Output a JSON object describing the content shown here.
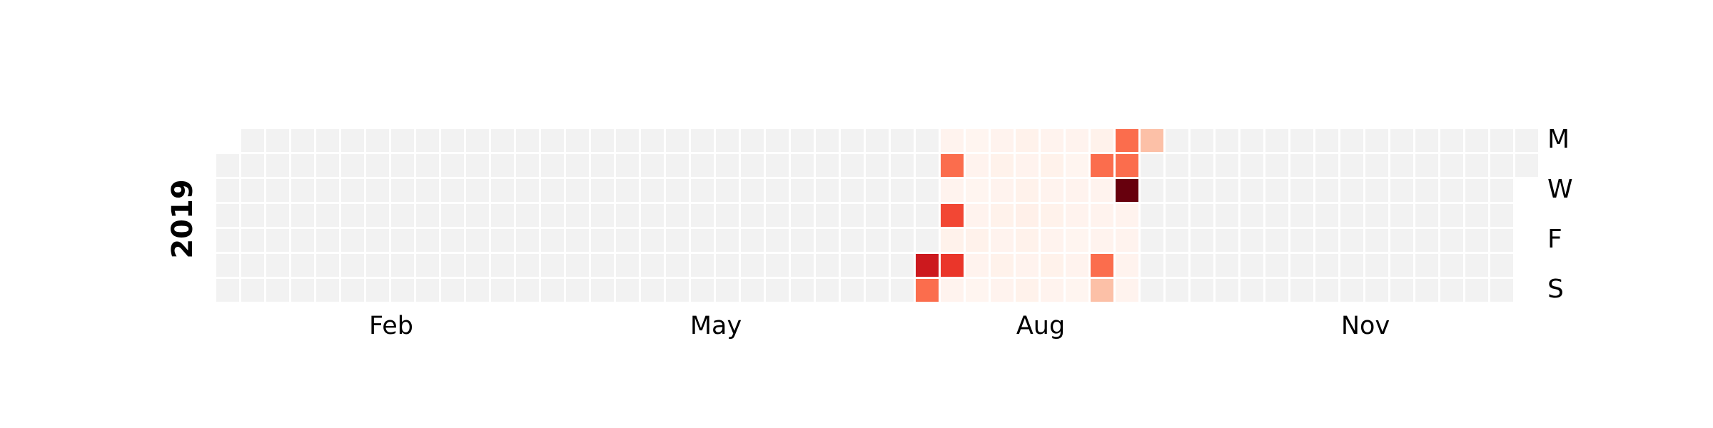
{
  "chart_data": {
    "type": "calendar",
    "year": 2019,
    "cmap": "Reds",
    "missing_color": "#f2f2f2",
    "day_labels": [
      "M",
      "W",
      "F",
      "S"
    ],
    "month_labels": [
      "Feb",
      "May",
      "Aug",
      "Nov"
    ],
    "values": [
      null,
      null,
      null,
      null,
      null,
      null,
      null,
      null,
      null,
      null,
      null,
      null,
      null,
      null,
      null,
      null,
      null,
      null,
      null,
      null,
      null,
      null,
      null,
      null,
      null,
      null,
      null,
      null,
      null,
      null,
      null,
      null,
      null,
      null,
      null,
      null,
      null,
      null,
      null,
      null,
      null,
      null,
      null,
      null,
      null,
      null,
      null,
      null,
      null,
      null,
      null,
      null,
      null,
      null,
      null,
      null,
      null,
      null,
      null,
      null,
      null,
      null,
      null,
      null,
      null,
      null,
      null,
      null,
      null,
      null,
      null,
      null,
      null,
      null,
      null,
      null,
      null,
      null,
      null,
      null,
      null,
      null,
      null,
      null,
      null,
      null,
      null,
      null,
      null,
      null,
      null,
      null,
      null,
      null,
      null,
      null,
      null,
      null,
      null,
      null,
      null,
      null,
      null,
      null,
      null,
      null,
      null,
      null,
      null,
      null,
      null,
      null,
      null,
      null,
      null,
      null,
      null,
      null,
      null,
      null,
      null,
      null,
      null,
      null,
      null,
      null,
      null,
      null,
      null,
      null,
      null,
      null,
      null,
      null,
      null,
      null,
      null,
      null,
      null,
      null,
      null,
      null,
      null,
      null,
      null,
      null,
      null,
      null,
      null,
      null,
      null,
      null,
      null,
      null,
      null,
      null,
      null,
      null,
      null,
      null,
      null,
      null,
      null,
      null,
      null,
      null,
      null,
      null,
      null,
      null,
      null,
      null,
      null,
      null,
      null,
      null,
      null,
      null,
      null,
      null,
      null,
      null,
      null,
      null,
      null,
      null,
      null,
      null,
      null,
      null,
      null,
      null,
      null,
      null,
      null,
      null,
      null,
      null,
      null,
      null,
      7.5,
      5,
      0.3,
      5,
      0.3,
      6,
      0.4,
      6.5,
      0.3,
      0.2,
      0.3,
      0.2,
      0.3,
      0.4,
      0.3,
      0.2,
      0.3,
      0.4,
      0.3,
      0.4,
      0.3,
      0.4,
      0.3,
      0.4,
      0.3,
      0.4,
      0.5,
      0.4,
      0.3,
      0.4,
      0.3,
      0.4,
      0.3,
      0.4,
      0.3,
      0.4,
      0.3,
      0.3,
      0.2,
      0.3,
      0.3,
      0.2,
      0.3,
      0.2,
      0.4,
      5,
      0.3,
      0.3,
      0.3,
      5,
      2.5,
      5,
      5,
      10,
      0.3,
      0.3,
      0.3,
      0.3,
      2.5,
      null,
      null,
      null,
      null,
      null,
      null,
      null,
      null,
      null,
      null,
      null,
      null,
      null,
      null,
      null,
      null,
      null,
      null,
      null,
      null,
      null,
      null,
      null,
      null,
      null,
      null,
      null,
      null,
      null,
      null,
      null,
      null,
      null,
      null,
      null,
      null,
      null,
      null,
      null,
      null,
      null,
      null,
      null,
      null,
      null,
      null,
      null,
      null,
      null,
      null,
      null,
      null,
      null,
      null,
      null,
      null,
      null,
      null,
      null,
      null,
      null,
      null,
      null,
      null,
      null,
      null,
      null,
      null,
      null,
      null,
      null,
      null,
      null,
      null,
      null,
      null,
      null,
      null,
      null,
      null,
      null,
      null,
      null,
      null,
      null,
      null,
      null,
      null,
      null,
      null,
      null,
      null,
      null,
      null,
      null,
      null,
      null,
      null,
      null,
      null,
      null,
      null,
      null,
      null,
      null,
      null
    ]
  }
}
